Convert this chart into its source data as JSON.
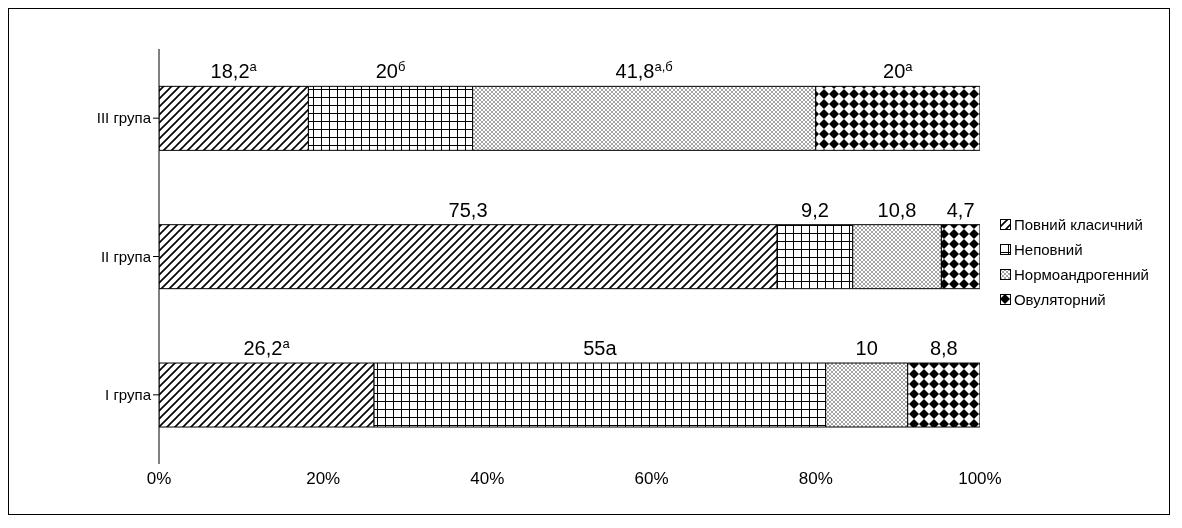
{
  "chart_data": {
    "type": "bar",
    "orientation": "horizontal",
    "stacked": true,
    "categories": [
      "III група",
      "II група",
      "I група"
    ],
    "series": [
      {
        "name": "Повний класичний",
        "color": "#000000",
        "values": [
          18.2,
          75.3,
          26.2
        ],
        "value_labels": [
          "18,2$^{а}$",
          "75,3",
          "26,2$^{а}$"
        ]
      },
      {
        "name": "Неповний",
        "color": "#000000",
        "values": [
          20,
          9.2,
          55
        ],
        "value_labels": [
          "20$^{б}$",
          "9,2",
          "55а"
        ]
      },
      {
        "name": "Нормоандрогенний",
        "color": "#000000",
        "values": [
          41.8,
          10.8,
          10
        ],
        "value_labels": [
          "41,8$^{а,б}$",
          "10,8",
          "10"
        ]
      },
      {
        "name": "Овуляторний",
        "color": "#000000",
        "values": [
          20,
          4.7,
          8.8
        ],
        "value_labels": [
          "20$^{а}$",
          "4,7",
          "8,8"
        ]
      }
    ],
    "xlim": [
      0,
      100
    ],
    "xticks": [
      {
        "value": 0,
        "label": "0%"
      },
      {
        "value": 20,
        "label": "20%"
      },
      {
        "value": 40,
        "label": "40%"
      },
      {
        "value": 60,
        "label": "60%"
      },
      {
        "value": 80,
        "label": "80%"
      },
      {
        "value": 100,
        "label": "100%"
      }
    ],
    "legend": "right"
  }
}
